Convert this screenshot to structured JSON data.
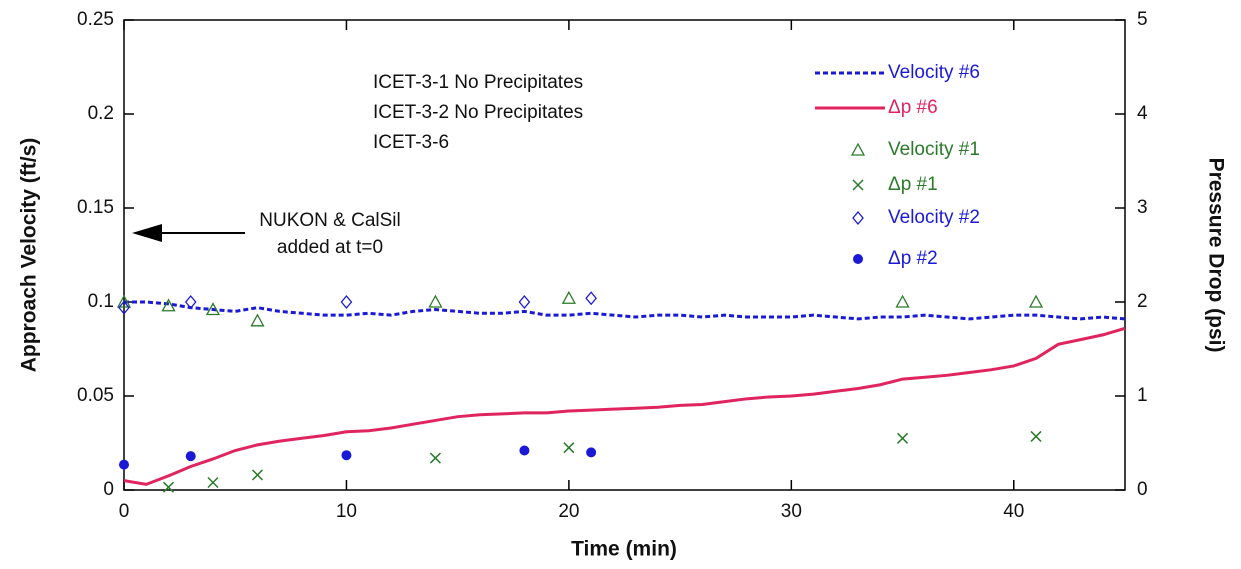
{
  "chart_data": {
    "type": "line",
    "xlabel": "Time (min)",
    "ylabel": "Approach Velocity (ft/s)",
    "y2label": "Pressure Drop (psi)",
    "xlim": [
      0,
      45
    ],
    "xticks": [
      0,
      10,
      20,
      30,
      40
    ],
    "ylim": [
      0,
      0.25
    ],
    "yticks": [
      0,
      0.05,
      0.1,
      0.15,
      0.2,
      0.25
    ],
    "y2lim": [
      0,
      5
    ],
    "y2ticks": [
      0,
      1,
      2,
      3,
      4,
      5
    ],
    "legend": "upper right",
    "annotations": [
      "ICET-3-1   No Precipitates",
      "ICET-3-2   No Precipitates",
      "ICET-3-6",
      "NUKON & CalSil",
      "added at t=0"
    ],
    "series": [
      {
        "name": "Velocity #6",
        "color": "#1a1ad6",
        "marker": "dash",
        "x": [
          0,
          1,
          2,
          3,
          4,
          5,
          6,
          7,
          8,
          9,
          10,
          11,
          12,
          13,
          14,
          15,
          16,
          17,
          18,
          19,
          20,
          21,
          22,
          23,
          24,
          25,
          26,
          27,
          28,
          29,
          30,
          31,
          32,
          33,
          34,
          35,
          36,
          37,
          38,
          39,
          40,
          41,
          42,
          43,
          44,
          45
        ],
        "values": [
          0.1,
          0.1,
          0.099,
          0.097,
          0.096,
          0.095,
          0.097,
          0.095,
          0.094,
          0.093,
          0.093,
          0.094,
          0.093,
          0.095,
          0.096,
          0.095,
          0.094,
          0.094,
          0.095,
          0.093,
          0.093,
          0.094,
          0.093,
          0.092,
          0.093,
          0.093,
          0.092,
          0.093,
          0.092,
          0.092,
          0.092,
          0.093,
          0.092,
          0.091,
          0.092,
          0.092,
          0.093,
          0.092,
          0.091,
          0.092,
          0.093,
          0.093,
          0.092,
          0.091,
          0.092,
          0.091
        ]
      },
      {
        "name": "Δp #6",
        "color": "#e0245e",
        "marker": "line",
        "axis": "y2",
        "x": [
          0,
          1,
          2,
          3,
          4,
          5,
          6,
          7,
          8,
          9,
          10,
          11,
          12,
          13,
          14,
          15,
          16,
          17,
          18,
          19,
          20,
          21,
          22,
          23,
          24,
          25,
          26,
          27,
          28,
          29,
          30,
          31,
          32,
          33,
          34,
          35,
          36,
          37,
          38,
          39,
          40,
          41,
          42,
          43,
          44,
          45
        ],
        "values": [
          0.1,
          0.06,
          0.15,
          0.25,
          0.33,
          0.42,
          0.48,
          0.52,
          0.55,
          0.58,
          0.62,
          0.63,
          0.66,
          0.7,
          0.74,
          0.78,
          0.8,
          0.81,
          0.82,
          0.82,
          0.84,
          0.85,
          0.86,
          0.87,
          0.88,
          0.9,
          0.91,
          0.94,
          0.97,
          0.99,
          1.0,
          1.02,
          1.05,
          1.08,
          1.12,
          1.18,
          1.2,
          1.22,
          1.25,
          1.28,
          1.32,
          1.4,
          1.55,
          1.6,
          1.65,
          1.72
        ]
      },
      {
        "name": "Velocity #1",
        "color": "#2a7a2a",
        "marker": "triangle",
        "x": [
          0,
          2,
          4,
          6,
          14,
          20,
          35,
          41
        ],
        "values": [
          0.1,
          0.098,
          0.096,
          0.09,
          0.1,
          0.102,
          0.1,
          0.1
        ]
      },
      {
        "name": "Δp #1",
        "color": "#2a7a2a",
        "marker": "x",
        "axis": "y2",
        "x": [
          2,
          4,
          6,
          14,
          20,
          35,
          41
        ],
        "values": [
          0.03,
          0.08,
          0.16,
          0.34,
          0.45,
          0.55,
          0.57
        ]
      },
      {
        "name": "Velocity #2",
        "color": "#1a1ad6",
        "marker": "diamond",
        "x": [
          0,
          3,
          10,
          18,
          21
        ],
        "values": [
          0.097,
          0.1,
          0.1,
          0.1,
          0.102
        ]
      },
      {
        "name": "Δp #2",
        "color": "#1a1ad6",
        "marker": "dot",
        "axis": "y2",
        "x": [
          0,
          3,
          10,
          18,
          21
        ],
        "values": [
          0.27,
          0.36,
          0.37,
          0.42,
          0.4
        ]
      }
    ]
  }
}
